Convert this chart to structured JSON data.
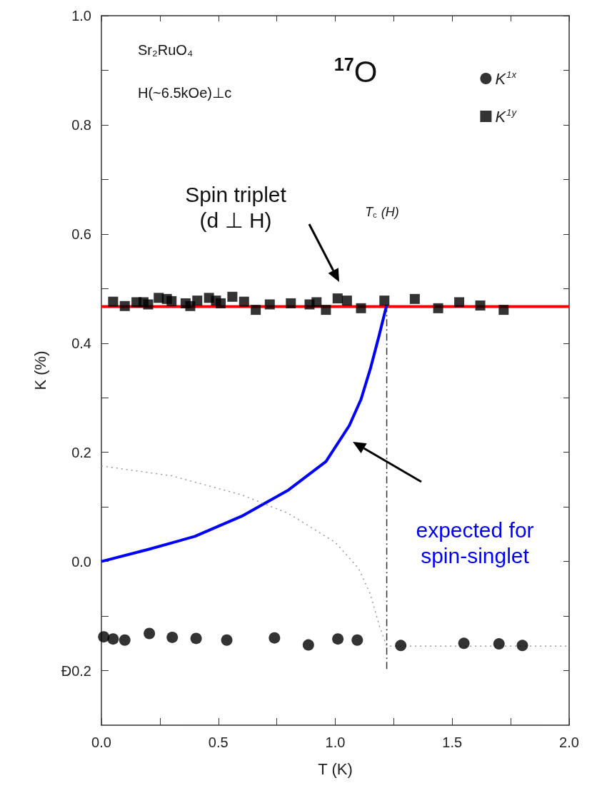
{
  "chart_data": {
    "type": "scatter",
    "xlabel": "T (K)",
    "ylabel": "K (%)",
    "xlim": [
      0,
      2
    ],
    "ylim": [
      -0.3,
      1.0
    ],
    "xticks": [
      {
        "value": 0,
        "label": "0.0"
      },
      {
        "value": 0.25,
        "label": null
      },
      0.5,
      {
        "value": 0.75,
        "label": null
      },
      {
        "value": 1,
        "label": "1.0"
      },
      {
        "value": 1.25,
        "label": null
      },
      1.5,
      {
        "value": 1.75,
        "label": null
      },
      {
        "value": 2,
        "label": "2.0"
      }
    ],
    "yticks": [
      {
        "value": -0.2,
        "label": "Ð0.2"
      },
      {
        "value": -0.1,
        "label": null
      },
      {
        "value": 0,
        "label": "0.0"
      },
      {
        "value": 0.1,
        "label": null
      },
      0.2,
      {
        "value": 0.3,
        "label": null
      },
      0.4,
      {
        "value": 0.5,
        "label": null
      },
      0.6,
      {
        "value": 0.7,
        "label": null
      },
      0.8,
      {
        "value": 0.9,
        "label": null
      },
      {
        "value": 1,
        "label": "1.0"
      }
    ],
    "grid": false,
    "legend": "top right",
    "series": [
      {
        "name": "K$^{1x}$",
        "marker": "circle",
        "color": "#000000",
        "x": [
          0.01,
          0.05,
          0.1,
          0.205,
          0.303,
          0.405,
          0.536,
          0.74,
          0.885,
          1.011,
          1.094,
          1.28,
          1.55,
          1.7,
          1.8
        ],
        "values": [
          -0.138,
          -0.142,
          -0.144,
          -0.132,
          -0.139,
          -0.141,
          -0.144,
          -0.14,
          -0.153,
          -0.142,
          -0.144,
          -0.154,
          -0.15,
          -0.151,
          -0.154
        ]
      },
      {
        "name": "K$^{1y}$",
        "marker": "square",
        "color": "#000000",
        "x": [
          0.05,
          0.1,
          0.15,
          0.18,
          0.2,
          0.245,
          0.28,
          0.3,
          0.36,
          0.38,
          0.41,
          0.46,
          0.49,
          0.51,
          0.56,
          0.61,
          0.66,
          0.72,
          0.81,
          0.89,
          0.92,
          0.96,
          1.01,
          1.05,
          1.11,
          1.21,
          1.34,
          1.44,
          1.53,
          1.62,
          1.72
        ],
        "values": [
          0.476,
          0.468,
          0.475,
          0.475,
          0.471,
          0.483,
          0.481,
          0.477,
          0.473,
          0.468,
          0.478,
          0.483,
          0.478,
          0.473,
          0.485,
          0.476,
          0.461,
          0.471,
          0.473,
          0.471,
          0.475,
          0.461,
          0.482,
          0.478,
          0.464,
          0.478,
          0.481,
          0.464,
          0.475,
          0.469,
          0.461
        ]
      },
      {
        "type": "line",
        "color": "#ff0000",
        "line_style": "solid",
        "x": [
          0,
          2
        ],
        "values": [
          0.467,
          0.467
        ]
      },
      {
        "type": "line",
        "color": "#0000ff",
        "line_style": "solid",
        "x": [
          0,
          0.2,
          0.4,
          0.6,
          0.8,
          0.96,
          1.06,
          1.11,
          1.15,
          1.185,
          1.22
        ],
        "values": [
          0,
          0.022,
          0.046,
          0.083,
          0.131,
          0.183,
          0.249,
          0.297,
          0.353,
          0.41,
          0.47
        ]
      },
      {
        "type": "line",
        "color": "#999999",
        "line_style": "dotted",
        "x": [
          0,
          0.3,
          0.6,
          0.8,
          1.0,
          1.1,
          1.15,
          1.19,
          1.22,
          2.0
        ],
        "values": [
          0.175,
          0.157,
          0.122,
          0.088,
          0.035,
          -0.013,
          -0.06,
          -0.12,
          -0.155,
          -0.155
        ]
      },
      {
        "type": "line",
        "color": "#333333",
        "line_style": "dashed",
        "x": [
          1.22,
          1.22
        ],
        "values": [
          0.47,
          -0.2
        ]
      }
    ],
    "annotations": [
      "Sr₂RuO₄",
      "H(~6.5kOe)⊥c",
      "$^{17}$O",
      "T$_{c}$ (H)",
      "Spin triplet\n(d ⊥ H)",
      "expected for\nspin-singlet"
    ]
  }
}
